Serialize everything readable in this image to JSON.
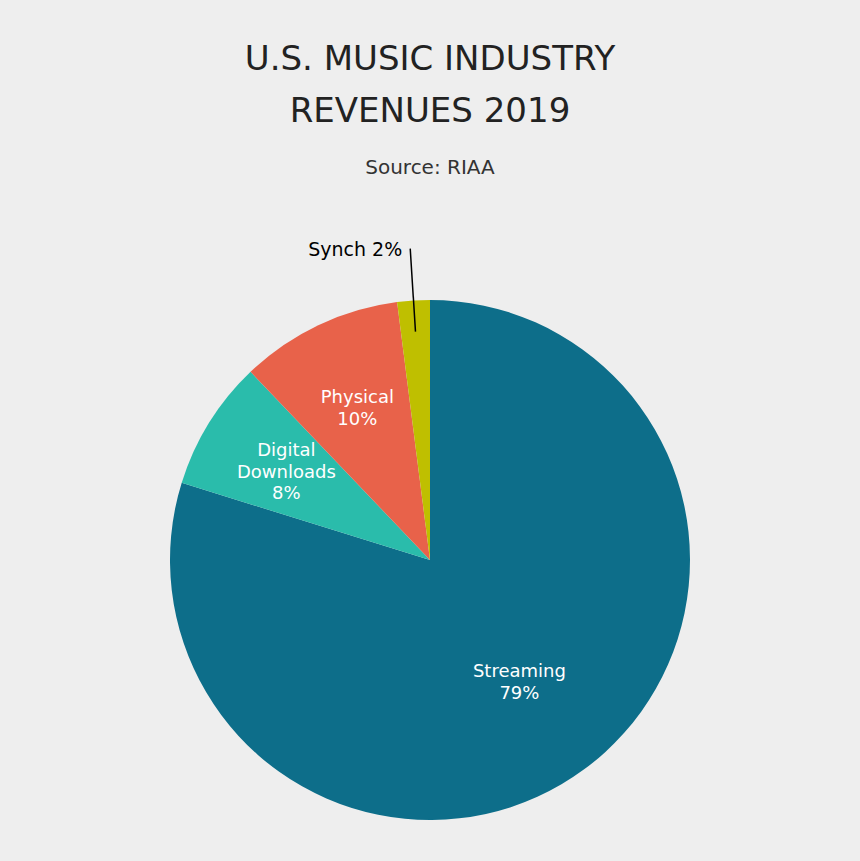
{
  "chart_data": {
    "type": "pie",
    "title": [
      "U.S. MUSIC INDUSTRY",
      "REVENUES 2019"
    ],
    "subtitle": "Source: RIAA",
    "categories": [
      "Streaming",
      "Digital Downloads",
      "Physical",
      "Synch"
    ],
    "values": [
      79,
      8,
      10,
      2
    ],
    "value_labels": [
      "79%",
      "8%",
      "10%",
      "2%"
    ],
    "colors": [
      "#0d6e8a",
      "#2abcab",
      "#e8624a",
      "#bfbf00"
    ],
    "data_labels": true
  }
}
